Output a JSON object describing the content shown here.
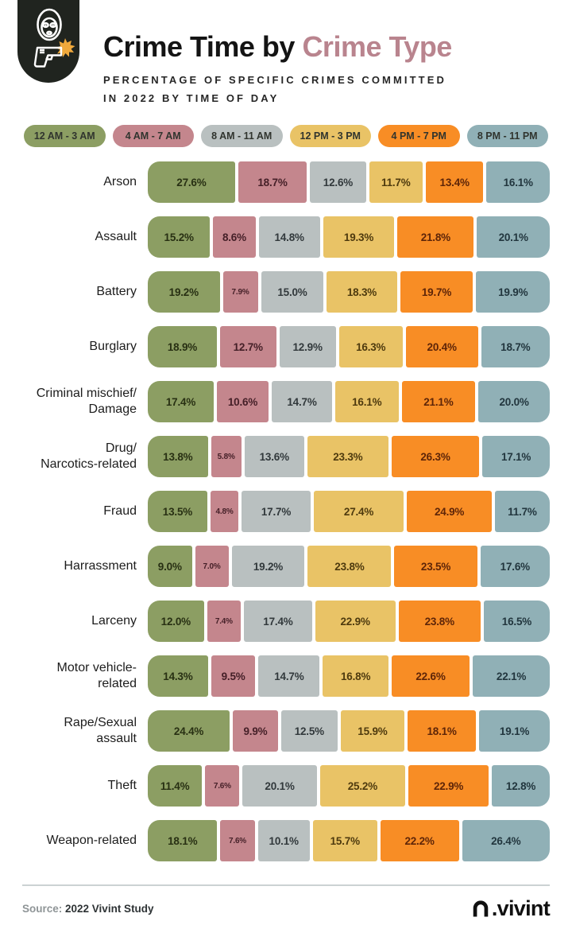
{
  "header": {
    "title_black": "Crime Time by ",
    "title_accent": "Crime Type",
    "accent_color": "#b9848e",
    "subtitle_line1": "PERCENTAGE OF SPECIFIC CRIMES COMMITTED",
    "subtitle_line2": "IN 2022 BY TIME OF DAY",
    "icon": "masked-robber-with-gun"
  },
  "chart_data": {
    "type": "bar",
    "stacked": true,
    "orientation": "horizontal",
    "value_suffix": "%",
    "xlim": [
      0,
      100
    ],
    "legend_position": "top",
    "grid": false,
    "categories": [
      "Arson",
      "Assault",
      "Battery",
      "Burglary",
      "Criminal mischief/\nDamage",
      "Drug/\nNarcotics-related",
      "Fraud",
      "Harrassment",
      "Larceny",
      "Motor vehicle-related",
      "Rape/Sexual assault",
      "Theft",
      "Weapon-related"
    ],
    "series": [
      {
        "name": "12 AM - 3 AM",
        "color": "#8c9e63",
        "label_color": "#283013",
        "values": [
          27.6,
          15.2,
          19.2,
          18.9,
          17.4,
          13.8,
          13.5,
          9.0,
          12.0,
          14.3,
          24.4,
          11.4,
          18.1
        ]
      },
      {
        "name": "4 AM - 7 AM",
        "color": "#c4868d",
        "label_color": "#441f27",
        "values": [
          18.7,
          8.6,
          7.9,
          12.7,
          10.6,
          5.8,
          4.8,
          7.0,
          7.4,
          9.5,
          9.9,
          7.6,
          7.6
        ]
      },
      {
        "name": "8 AM - 11 AM",
        "color": "#b9c0c0",
        "label_color": "#32393c",
        "values": [
          12.6,
          14.8,
          15.0,
          12.9,
          14.7,
          13.6,
          17.7,
          19.2,
          17.4,
          14.7,
          12.5,
          20.1,
          10.1
        ]
      },
      {
        "name": "12 PM - 3 PM",
        "color": "#e9c366",
        "label_color": "#4e3a0e",
        "values": [
          11.7,
          19.3,
          18.3,
          16.3,
          16.1,
          23.3,
          27.4,
          23.8,
          22.9,
          16.8,
          15.9,
          25.2,
          15.7
        ]
      },
      {
        "name": "4 PM - 7 PM",
        "color": "#f88d25",
        "label_color": "#5e2508",
        "values": [
          13.4,
          21.8,
          19.7,
          20.4,
          21.1,
          26.3,
          24.9,
          23.5,
          23.8,
          22.6,
          18.1,
          22.9,
          22.2
        ]
      },
      {
        "name": "8 PM - 11 PM",
        "color": "#90b0b6",
        "label_color": "#22363e",
        "values": [
          16.1,
          20.1,
          19.9,
          18.7,
          20.0,
          17.1,
          11.7,
          17.6,
          16.5,
          22.1,
          19.1,
          12.8,
          26.4
        ]
      }
    ]
  },
  "footer": {
    "source_label": "Source:",
    "source_text": " 2022 Vivint Study",
    "brand": ".vivint",
    "brand_icon": "vivint-arch-logo"
  }
}
